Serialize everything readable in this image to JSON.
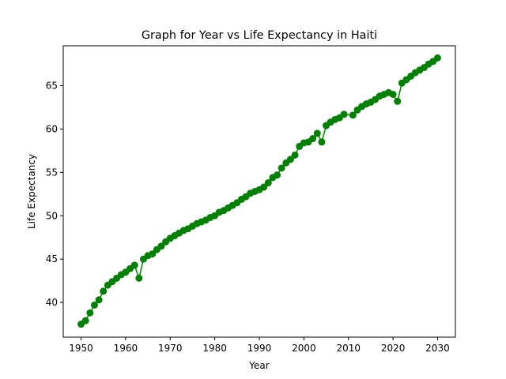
{
  "chart_data": {
    "type": "line",
    "title": "Graph for Year vs Life Expectancy in Haiti",
    "xlabel": "Year",
    "ylabel": "Life Expectancy",
    "xlim": [
      1946,
      2034
    ],
    "ylim": [
      36.0,
      69.6
    ],
    "xticks": [
      1950,
      1960,
      1970,
      1980,
      1990,
      2000,
      2010,
      2020,
      2030
    ],
    "yticks": [
      40,
      45,
      50,
      55,
      60,
      65
    ],
    "grid": false,
    "line_color": "#008000",
    "marker": "circle",
    "series": [
      {
        "x": [
          1950,
          1951,
          1952,
          1953,
          1954,
          1955,
          1956,
          1957,
          1958,
          1959,
          1960,
          1961,
          1962,
          1963,
          1964,
          1965,
          1966,
          1967,
          1968,
          1969,
          1970,
          1971,
          1972,
          1973,
          1974,
          1975,
          1976,
          1977,
          1978,
          1979,
          1980,
          1981,
          1982,
          1983,
          1984,
          1985,
          1986,
          1987,
          1988,
          1989,
          1990,
          1991,
          1992,
          1993,
          1994,
          1995,
          1996,
          1997,
          1998,
          1999,
          2000,
          2001,
          2002,
          2003,
          2004,
          2005,
          2006,
          2007,
          2008,
          2009,
          2011,
          2012,
          2013,
          2014,
          2015,
          2016,
          2017,
          2018,
          2019,
          2020,
          2021,
          2022,
          2023,
          2024,
          2025,
          2026,
          2027,
          2028,
          2029,
          2030
        ],
        "y": [
          37.5,
          37.9,
          38.8,
          39.7,
          40.3,
          41.3,
          42.0,
          42.4,
          42.8,
          43.2,
          43.5,
          43.9,
          44.3,
          42.8,
          45.0,
          45.4,
          45.6,
          46.1,
          46.5,
          47.0,
          47.4,
          47.7,
          48.0,
          48.3,
          48.5,
          48.8,
          49.1,
          49.3,
          49.5,
          49.8,
          50.0,
          50.4,
          50.6,
          50.9,
          51.2,
          51.5,
          51.9,
          52.2,
          52.6,
          52.8,
          53.0,
          53.3,
          53.8,
          54.4,
          54.7,
          55.5,
          56.1,
          56.5,
          57.0,
          58.0,
          58.4,
          58.5,
          58.9,
          59.5,
          58.5,
          60.4,
          60.8,
          61.1,
          61.3,
          61.7,
          61.6,
          62.2,
          62.6,
          62.9,
          63.1,
          63.4,
          63.8,
          64.0,
          64.2,
          64.0,
          63.2,
          65.3,
          65.7,
          66.1,
          66.5,
          66.8,
          67.1,
          67.5,
          67.8,
          68.2
        ]
      }
    ]
  }
}
